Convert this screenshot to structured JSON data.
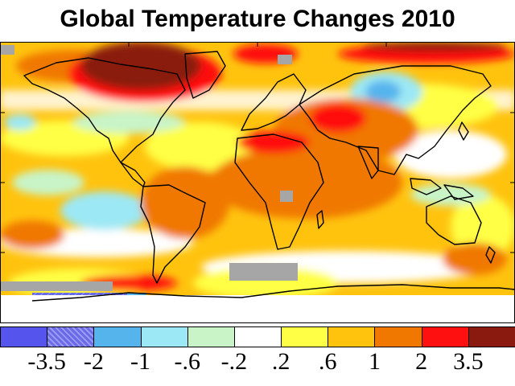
{
  "title": "Global Temperature Changes 2010",
  "legend": {
    "colors": [
      "#5555ee",
      "#6a6ae6",
      "#56b4ec",
      "#9ce8f4",
      "#c8f4c8",
      "#ffffff",
      "#ffff45",
      "#ffc30e",
      "#f07800",
      "#ff1010",
      "#8a1a10"
    ],
    "hatched_index": 1,
    "tick_labels": [
      "-3.5",
      "-2",
      "-1",
      "-.6",
      "-.2",
      ".2",
      ".6",
      "1",
      "2",
      "3.5"
    ]
  },
  "map": {
    "missing_data_color": "#a6a6a6"
  }
}
